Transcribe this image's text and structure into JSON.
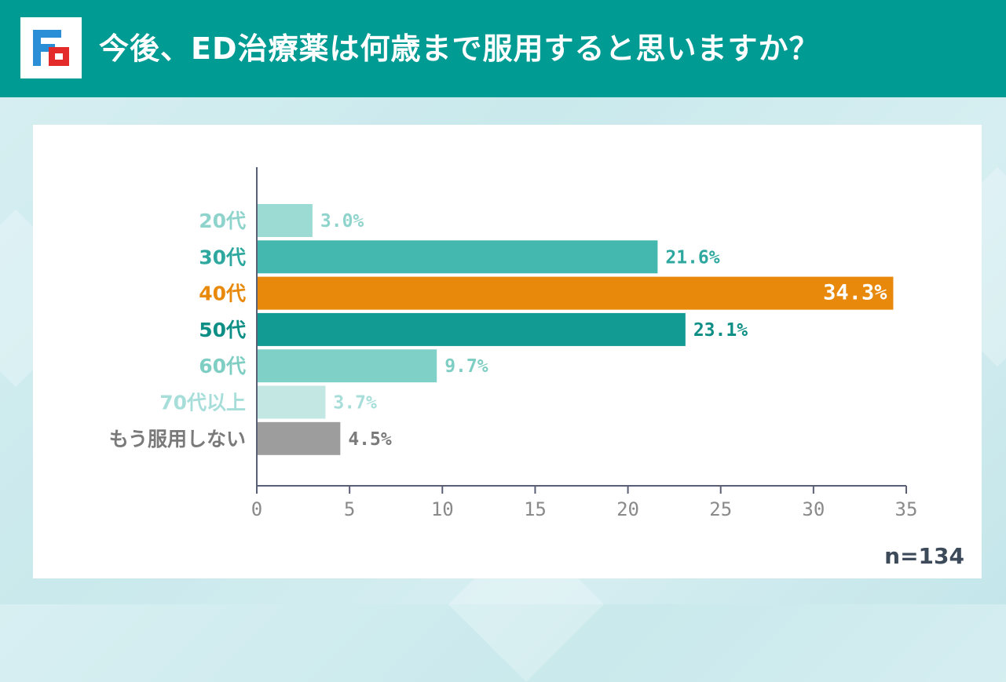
{
  "title": "今後、ED治療薬は何歳まで服用すると思いますか？",
  "sample_size": "n=134",
  "colors": {
    "header": "#009b93",
    "axis": "#5a5f75",
    "highlight": "#e8890b"
  },
  "chart_data": {
    "type": "bar",
    "orientation": "horizontal",
    "title": "今後、ED治療薬は何歳まで服用すると思いますか？",
    "categories": [
      "20代",
      "30代",
      "40代",
      "50代",
      "60代",
      "70代以上",
      "もう服用しない"
    ],
    "values": [
      3.0,
      21.6,
      34.3,
      23.1,
      9.7,
      3.7,
      4.5
    ],
    "value_labels": [
      "3.0%",
      "21.6%",
      "34.3%",
      "23.1%",
      "9.7%",
      "3.7%",
      "4.5%"
    ],
    "bar_colors": [
      "#9bdbd3",
      "#44b8af",
      "#e8890b",
      "#119b92",
      "#7fd0c6",
      "#c3e8e4",
      "#9d9d9d"
    ],
    "label_colors": [
      "#8fd4cc",
      "#2ea89f",
      "#e8890b",
      "#0e8f86",
      "#7fcec4",
      "#a7deda",
      "#7a7a7a"
    ],
    "value_label_colors": [
      "#8fd4cc",
      "#2ea89f",
      "#ffffff",
      "#0e8f86",
      "#7fcec4",
      "#a7deda",
      "#7a7a7a"
    ],
    "value_label_inside": [
      false,
      false,
      true,
      false,
      false,
      false,
      false
    ],
    "x_ticks": [
      0,
      5,
      10,
      15,
      20,
      25,
      30,
      35
    ],
    "xlim": [
      0,
      35
    ],
    "xlabel": "",
    "ylabel": "",
    "grid": false,
    "legend": "none"
  }
}
